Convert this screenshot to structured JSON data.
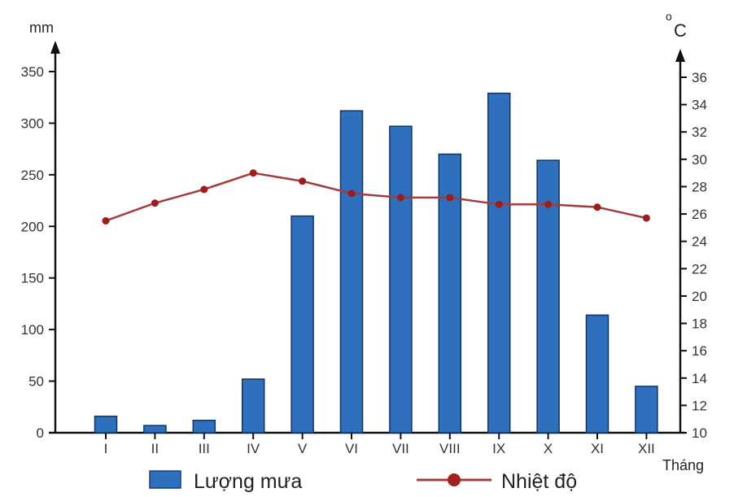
{
  "chart_data": {
    "type": "bar+line",
    "categories": [
      "I",
      "II",
      "III",
      "IV",
      "V",
      "VI",
      "VII",
      "VIII",
      "IX",
      "X",
      "XI",
      "XII"
    ],
    "series": [
      {
        "name": "Lượng mưa",
        "kind": "bar",
        "axis": "left",
        "unit": "mm",
        "color": "#2e6fbe",
        "values": [
          16,
          7,
          12,
          52,
          210,
          312,
          297,
          270,
          329,
          264,
          114,
          45
        ]
      },
      {
        "name": "Nhiệt độ",
        "kind": "line",
        "axis": "right",
        "unit": "°C",
        "color": "#a33c3c",
        "values": [
          25.5,
          26.8,
          27.8,
          29.0,
          28.4,
          27.5,
          27.2,
          27.2,
          26.7,
          26.7,
          26.5,
          25.7
        ]
      }
    ],
    "y_left": {
      "label": "mm",
      "ylim": [
        0,
        350
      ],
      "ticks": [
        0,
        50,
        100,
        150,
        200,
        250,
        300,
        350
      ]
    },
    "y_right": {
      "label_o": "o",
      "label_c": "C",
      "ylim": [
        10,
        36
      ],
      "ticks": [
        10,
        12,
        14,
        16,
        18,
        20,
        22,
        24,
        26,
        28,
        30,
        32,
        34,
        36
      ]
    },
    "xlabel": "Tháng",
    "grid": false,
    "legend_position": "bottom"
  }
}
